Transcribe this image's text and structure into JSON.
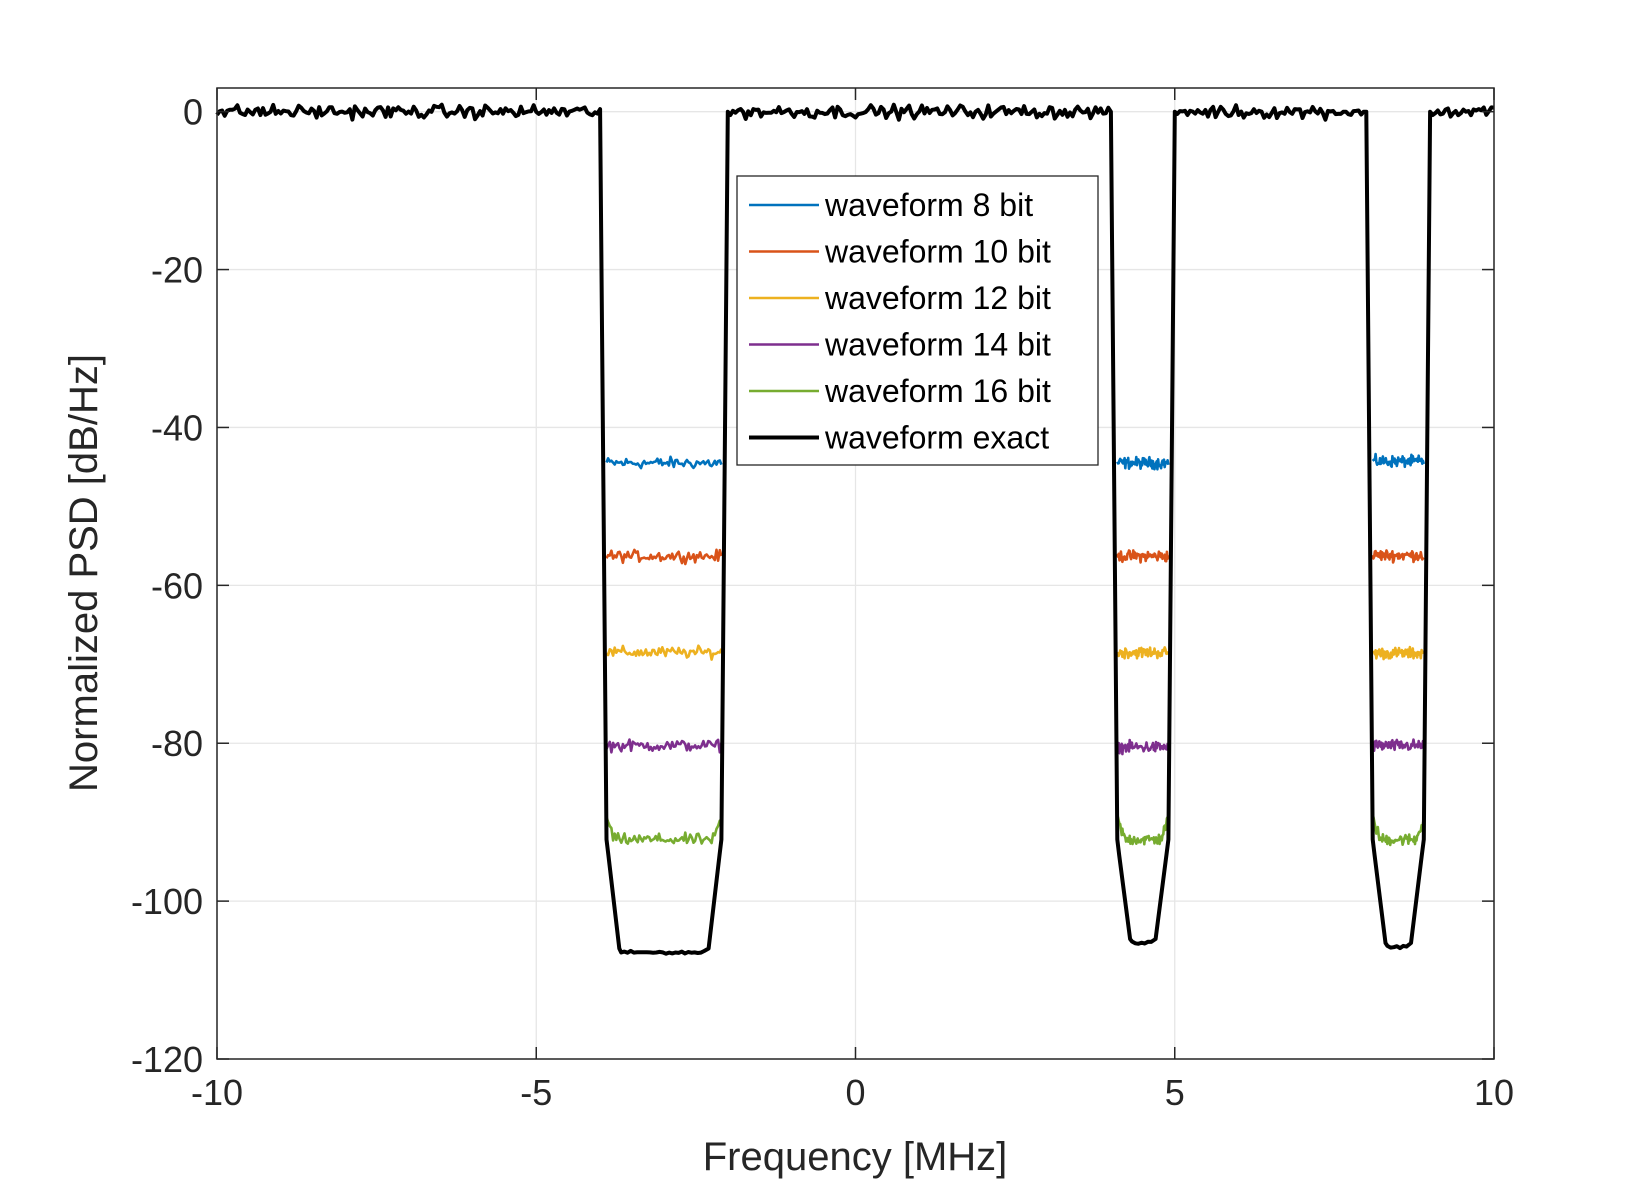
{
  "chart_data": {
    "type": "line",
    "title": "",
    "xlabel": "Frequency [MHz]",
    "ylabel": "Normalized PSD [dB/Hz]",
    "xlim": [
      -10,
      10
    ],
    "ylim": [
      -120,
      3
    ],
    "xticks": [
      -10,
      -5,
      0,
      5,
      10
    ],
    "xtick_labels": [
      "-10",
      "-5",
      "0",
      "5",
      "10"
    ],
    "yticks": [
      0,
      -20,
      -40,
      -60,
      -80,
      -100,
      -120
    ],
    "ytick_labels": [
      "0",
      "-20",
      "-40",
      "-60",
      "-80",
      "-100",
      "-120"
    ],
    "grid": true,
    "legend_position": "top-center",
    "passband_level_db": 0,
    "notches_mhz": [
      [
        -4,
        -2
      ],
      [
        4,
        5
      ],
      [
        8,
        9
      ]
    ],
    "series": [
      {
        "name": "waveform 8 bit",
        "color": "#0072bd",
        "notch_floor_db": [
          -44.5,
          -44.5,
          -44.3
        ]
      },
      {
        "name": "waveform 10 bit",
        "color": "#d95319",
        "notch_floor_db": [
          -56.3,
          -56.3,
          -56.2
        ]
      },
      {
        "name": "waveform 12 bit",
        "color": "#edb120",
        "notch_floor_db": [
          -68.5,
          -68.5,
          -68.6
        ]
      },
      {
        "name": "waveform 14 bit",
        "color": "#7e2f8e",
        "notch_floor_db": [
          -80.3,
          -80.5,
          -80.3
        ]
      },
      {
        "name": "waveform 16 bit",
        "color": "#77ac30",
        "notch_floor_db": [
          -92.2,
          -92.2,
          -92.2
        ]
      },
      {
        "name": "waveform exact",
        "color": "#000000",
        "notch_floor_db": [
          -106.5,
          -105.3,
          -105.8
        ]
      }
    ]
  }
}
